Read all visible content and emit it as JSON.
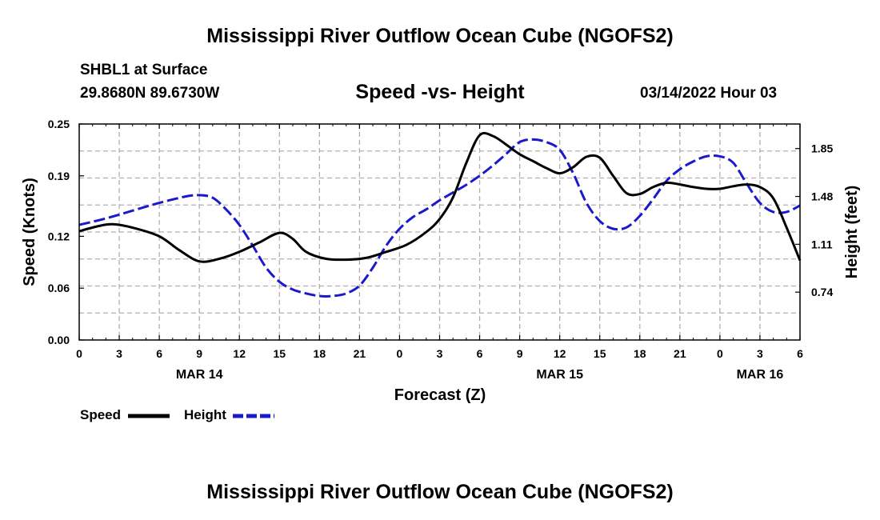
{
  "header": {
    "title": "Mississippi River Outflow Ocean Cube (NGOFS2)",
    "station": "SHBL1 at Surface",
    "coords": "29.8680N  89.6730W",
    "subtitle": "Speed -vs- Height",
    "datetime": "03/14/2022 Hour 03"
  },
  "footer": {
    "title": "Mississippi River Outflow Ocean Cube (NGOFS2)"
  },
  "legend": {
    "speed_label": "Speed",
    "height_label": "Height"
  },
  "colors": {
    "speed": "#000000",
    "height": "#1a1acc",
    "grid": "#b0b0b0"
  },
  "chart_data": {
    "type": "line",
    "title": "Speed -vs- Height",
    "xlabel": "Forecast (Z)",
    "ylabel": "Speed (Knots)",
    "y2label": "Height (feet)",
    "xlim": [
      0,
      54
    ],
    "ylim": [
      0,
      0.25
    ],
    "y2lim": [
      0.37,
      2.04
    ],
    "x_ticks": [
      0,
      3,
      6,
      9,
      12,
      15,
      18,
      21,
      24,
      27,
      30,
      33,
      36,
      39,
      42,
      45,
      48,
      51,
      54
    ],
    "x_tick_labels": [
      "0",
      "3",
      "6",
      "9",
      "12",
      "15",
      "18",
      "21",
      "0",
      "3",
      "6",
      "9",
      "12",
      "15",
      "18",
      "21",
      "0",
      "3",
      "6"
    ],
    "date_labels": [
      {
        "x": 9,
        "label": "MAR 14"
      },
      {
        "x": 36,
        "label": "MAR 15"
      },
      {
        "x": 51,
        "label": "MAR 16"
      }
    ],
    "y_ticks": [
      0.0,
      0.06,
      0.12,
      0.19,
      0.25
    ],
    "y_tick_labels": [
      "0.00",
      "0.06",
      "0.12",
      "0.19",
      "0.25"
    ],
    "y2_ticks": [
      0.74,
      1.11,
      1.48,
      1.85
    ],
    "y2_tick_labels": [
      "0.74",
      "1.11",
      "1.48",
      "1.85"
    ],
    "grid": true,
    "series": [
      {
        "name": "Speed",
        "axis": "left",
        "style": "solid",
        "x": [
          0,
          1.5,
          2.5,
          4,
          6,
          7.5,
          9,
          10.5,
          12,
          13.5,
          15,
          16,
          17,
          18.5,
          20,
          21.5,
          23,
          24.5,
          26,
          27,
          28,
          29,
          30,
          31,
          32,
          33,
          34,
          35,
          36,
          37,
          38,
          39,
          40,
          41,
          42,
          43,
          44,
          45,
          46,
          47,
          48,
          49,
          50,
          51,
          52,
          53,
          54
        ],
        "values": [
          0.126,
          0.132,
          0.134,
          0.13,
          0.12,
          0.104,
          0.091,
          0.094,
          0.102,
          0.113,
          0.124,
          0.117,
          0.102,
          0.094,
          0.093,
          0.095,
          0.102,
          0.11,
          0.125,
          0.14,
          0.165,
          0.205,
          0.237,
          0.236,
          0.226,
          0.215,
          0.207,
          0.199,
          0.193,
          0.2,
          0.212,
          0.211,
          0.19,
          0.17,
          0.169,
          0.177,
          0.182,
          0.18,
          0.177,
          0.175,
          0.175,
          0.178,
          0.18,
          0.177,
          0.164,
          0.13,
          0.092
        ]
      },
      {
        "name": "Height",
        "axis": "right",
        "style": "dashed",
        "x": [
          0,
          2,
          4,
          6,
          8,
          9,
          10,
          11,
          12,
          13,
          14,
          15,
          16,
          17,
          18,
          19,
          20,
          21,
          22,
          23,
          24,
          25,
          26,
          27,
          28,
          29,
          30,
          31,
          32,
          33,
          34,
          35,
          36,
          37,
          38,
          39,
          40,
          41,
          42,
          43,
          44,
          45,
          46,
          47,
          48,
          49,
          50,
          51,
          52,
          53,
          54
        ],
        "values": [
          1.26,
          1.31,
          1.37,
          1.43,
          1.48,
          1.49,
          1.47,
          1.38,
          1.26,
          1.1,
          0.93,
          0.82,
          0.76,
          0.73,
          0.71,
          0.71,
          0.73,
          0.79,
          0.93,
          1.1,
          1.23,
          1.32,
          1.38,
          1.45,
          1.51,
          1.57,
          1.64,
          1.72,
          1.81,
          1.9,
          1.92,
          1.9,
          1.84,
          1.66,
          1.43,
          1.29,
          1.23,
          1.24,
          1.33,
          1.46,
          1.6,
          1.69,
          1.75,
          1.79,
          1.79,
          1.74,
          1.58,
          1.43,
          1.36,
          1.36,
          1.41
        ]
      }
    ]
  }
}
